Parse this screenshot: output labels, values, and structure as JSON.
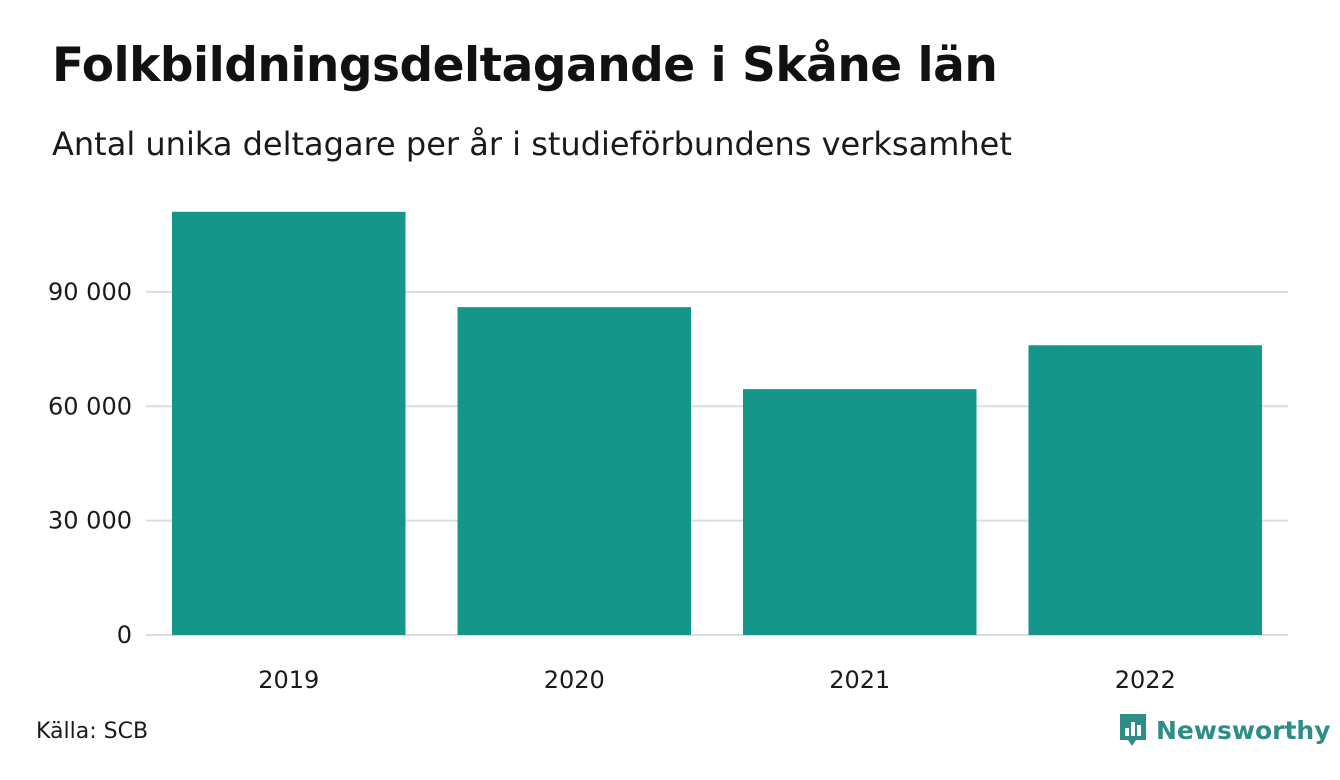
{
  "title": "Folkbildningsdeltagande i Skåne län",
  "subtitle": "Antal unika deltagare per år i studieförbundens verksamhet",
  "source": "Källa: SCB",
  "brand": {
    "name": "Newsworthy",
    "icon": "bar-chart-speech-bubble-icon",
    "color": "#2e8e87"
  },
  "colors": {
    "bar": "#16968a",
    "grid": "#dddddd",
    "text": "#1a1a1a"
  },
  "chart_data": {
    "type": "bar",
    "title": "Folkbildningsdeltagande i Skåne län",
    "subtitle": "Antal unika deltagare per år i studieförbundens verksamhet",
    "xlabel": "",
    "ylabel": "",
    "categories": [
      "2019",
      "2020",
      "2021",
      "2022"
    ],
    "values": [
      111000,
      86000,
      64500,
      76000
    ],
    "ylim": [
      0,
      112000
    ],
    "yticks": [
      0,
      30000,
      60000,
      90000
    ],
    "ytick_labels": [
      "0",
      "30 000",
      "60 000",
      "90 000"
    ],
    "grid": true,
    "legend": "none"
  }
}
